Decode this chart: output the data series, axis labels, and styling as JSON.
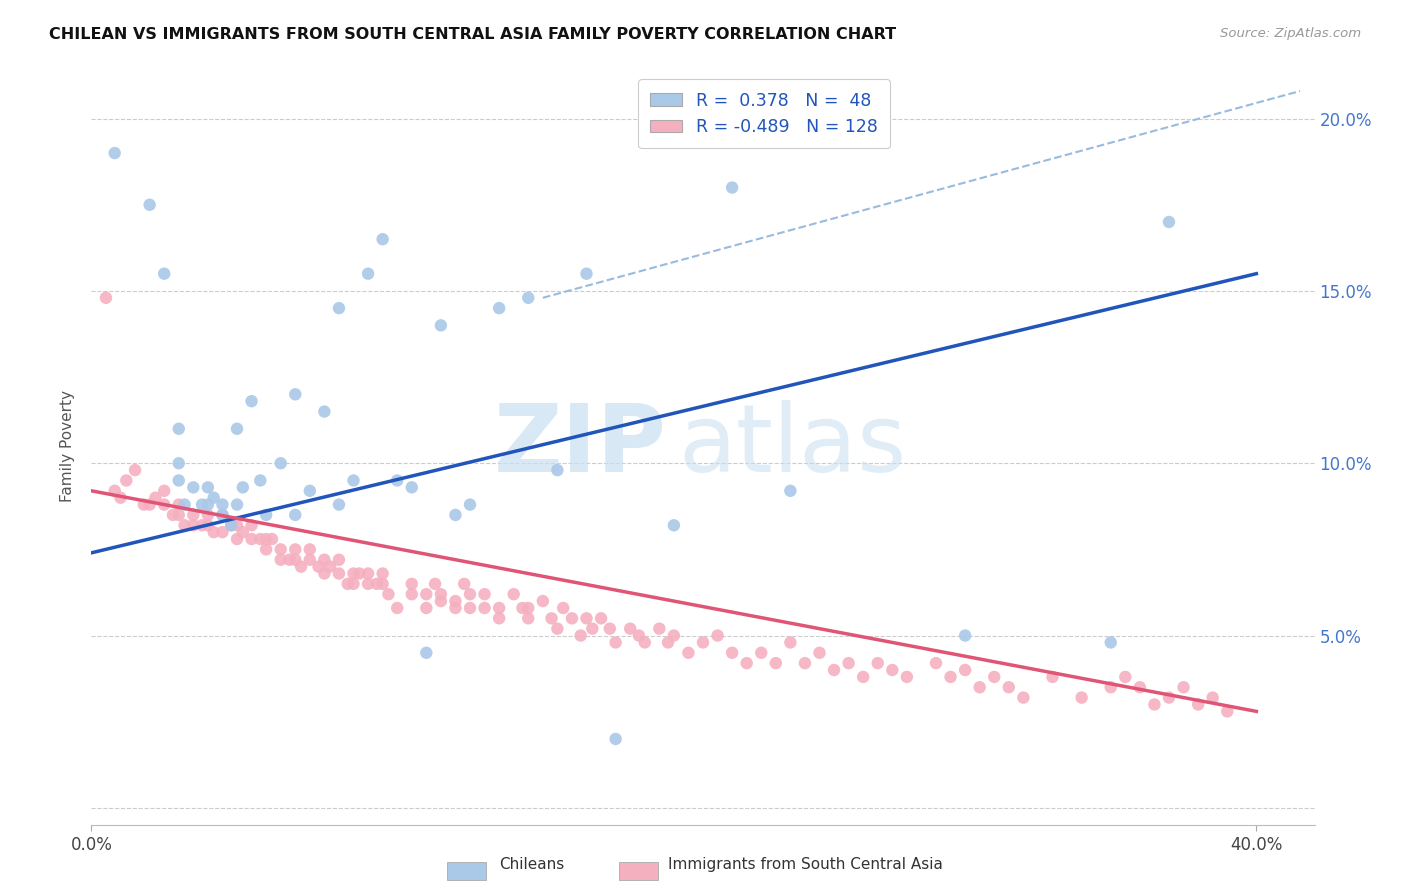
{
  "title": "CHILEAN VS IMMIGRANTS FROM SOUTH CENTRAL ASIA FAMILY POVERTY CORRELATION CHART",
  "source": "Source: ZipAtlas.com",
  "ylabel": "Family Poverty",
  "yticks": [
    0.0,
    0.05,
    0.1,
    0.15,
    0.2
  ],
  "ytick_labels": [
    "",
    "5.0%",
    "10.0%",
    "15.0%",
    "20.0%"
  ],
  "xlim": [
    0.0,
    0.42
  ],
  "ylim": [
    -0.005,
    0.215
  ],
  "chilean_color": "#aac8e8",
  "immigrant_color": "#f5b0c0",
  "chilean_line_color": "#2255BB",
  "immigrant_line_color": "#E05575",
  "dashed_line_color": "#99bbdd",
  "R_chilean": 0.378,
  "N_chilean": 48,
  "R_immigrant": -0.489,
  "N_immigrant": 128,
  "legend_label_chilean": "Chileans",
  "legend_label_immigrant": "Immigrants from South Central Asia",
  "watermark_zip": "ZIP",
  "watermark_atlas": "atlas",
  "chilean_line_x0": 0.0,
  "chilean_line_y0": 0.074,
  "chilean_line_x1": 0.4,
  "chilean_line_y1": 0.155,
  "immigrant_line_x0": 0.0,
  "immigrant_line_y0": 0.092,
  "immigrant_line_x1": 0.4,
  "immigrant_line_y1": 0.028,
  "dashed_line_x0": 0.155,
  "dashed_line_y0": 0.148,
  "dashed_line_x1": 0.415,
  "dashed_line_y1": 0.208,
  "chilean_x": [
    0.008,
    0.02,
    0.025,
    0.03,
    0.03,
    0.03,
    0.032,
    0.035,
    0.038,
    0.04,
    0.04,
    0.042,
    0.045,
    0.045,
    0.048,
    0.05,
    0.05,
    0.052,
    0.055,
    0.058,
    0.06,
    0.065,
    0.07,
    0.07,
    0.075,
    0.08,
    0.085,
    0.085,
    0.09,
    0.095,
    0.1,
    0.105,
    0.11,
    0.115,
    0.12,
    0.125,
    0.13,
    0.14,
    0.15,
    0.16,
    0.17,
    0.18,
    0.2,
    0.22,
    0.24,
    0.3,
    0.35,
    0.37
  ],
  "chilean_y": [
    0.19,
    0.175,
    0.155,
    0.11,
    0.095,
    0.1,
    0.088,
    0.093,
    0.088,
    0.093,
    0.088,
    0.09,
    0.085,
    0.088,
    0.082,
    0.088,
    0.11,
    0.093,
    0.118,
    0.095,
    0.085,
    0.1,
    0.085,
    0.12,
    0.092,
    0.115,
    0.088,
    0.145,
    0.095,
    0.155,
    0.165,
    0.095,
    0.093,
    0.045,
    0.14,
    0.085,
    0.088,
    0.145,
    0.148,
    0.098,
    0.155,
    0.02,
    0.082,
    0.18,
    0.092,
    0.05,
    0.048,
    0.17
  ],
  "immigrant_x": [
    0.005,
    0.008,
    0.01,
    0.012,
    0.015,
    0.018,
    0.02,
    0.022,
    0.025,
    0.025,
    0.028,
    0.03,
    0.03,
    0.032,
    0.035,
    0.035,
    0.038,
    0.04,
    0.04,
    0.042,
    0.045,
    0.045,
    0.048,
    0.05,
    0.05,
    0.052,
    0.055,
    0.055,
    0.058,
    0.06,
    0.06,
    0.062,
    0.065,
    0.065,
    0.068,
    0.07,
    0.07,
    0.072,
    0.075,
    0.075,
    0.078,
    0.08,
    0.08,
    0.082,
    0.085,
    0.085,
    0.088,
    0.09,
    0.09,
    0.092,
    0.095,
    0.095,
    0.098,
    0.1,
    0.1,
    0.102,
    0.105,
    0.11,
    0.11,
    0.115,
    0.115,
    0.118,
    0.12,
    0.12,
    0.125,
    0.125,
    0.128,
    0.13,
    0.13,
    0.135,
    0.135,
    0.14,
    0.14,
    0.145,
    0.148,
    0.15,
    0.15,
    0.155,
    0.158,
    0.16,
    0.162,
    0.165,
    0.168,
    0.17,
    0.172,
    0.175,
    0.178,
    0.18,
    0.185,
    0.188,
    0.19,
    0.195,
    0.198,
    0.2,
    0.205,
    0.21,
    0.215,
    0.22,
    0.225,
    0.23,
    0.235,
    0.24,
    0.245,
    0.25,
    0.255,
    0.26,
    0.265,
    0.27,
    0.275,
    0.28,
    0.29,
    0.295,
    0.3,
    0.305,
    0.31,
    0.315,
    0.32,
    0.33,
    0.34,
    0.35,
    0.355,
    0.36,
    0.365,
    0.37,
    0.375,
    0.38,
    0.385,
    0.39
  ],
  "immigrant_y": [
    0.148,
    0.092,
    0.09,
    0.095,
    0.098,
    0.088,
    0.088,
    0.09,
    0.088,
    0.092,
    0.085,
    0.088,
    0.085,
    0.082,
    0.082,
    0.085,
    0.082,
    0.085,
    0.082,
    0.08,
    0.08,
    0.085,
    0.082,
    0.078,
    0.082,
    0.08,
    0.078,
    0.082,
    0.078,
    0.075,
    0.078,
    0.078,
    0.072,
    0.075,
    0.072,
    0.075,
    0.072,
    0.07,
    0.072,
    0.075,
    0.07,
    0.072,
    0.068,
    0.07,
    0.072,
    0.068,
    0.065,
    0.068,
    0.065,
    0.068,
    0.065,
    0.068,
    0.065,
    0.068,
    0.065,
    0.062,
    0.058,
    0.062,
    0.065,
    0.062,
    0.058,
    0.065,
    0.06,
    0.062,
    0.058,
    0.06,
    0.065,
    0.058,
    0.062,
    0.058,
    0.062,
    0.055,
    0.058,
    0.062,
    0.058,
    0.055,
    0.058,
    0.06,
    0.055,
    0.052,
    0.058,
    0.055,
    0.05,
    0.055,
    0.052,
    0.055,
    0.052,
    0.048,
    0.052,
    0.05,
    0.048,
    0.052,
    0.048,
    0.05,
    0.045,
    0.048,
    0.05,
    0.045,
    0.042,
    0.045,
    0.042,
    0.048,
    0.042,
    0.045,
    0.04,
    0.042,
    0.038,
    0.042,
    0.04,
    0.038,
    0.042,
    0.038,
    0.04,
    0.035,
    0.038,
    0.035,
    0.032,
    0.038,
    0.032,
    0.035,
    0.038,
    0.035,
    0.03,
    0.032,
    0.035,
    0.03,
    0.032,
    0.028
  ]
}
